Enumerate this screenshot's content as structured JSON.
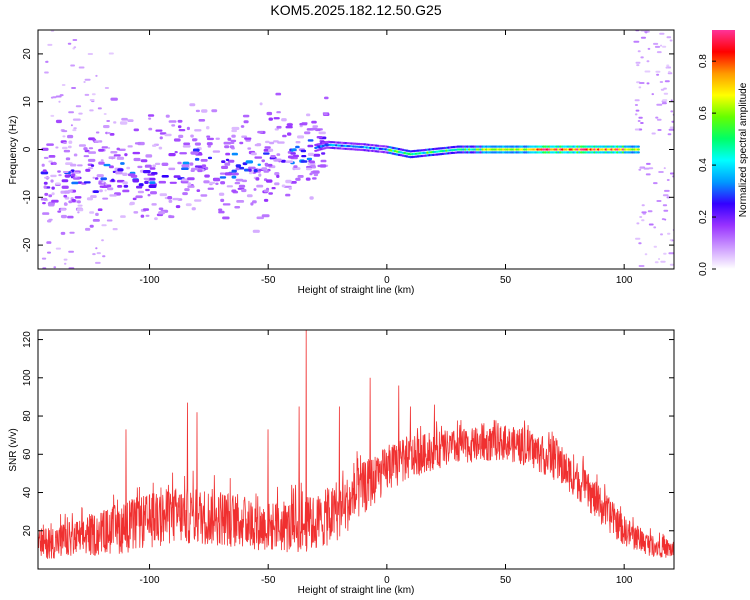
{
  "title": "KOM5.2025.182.12.50.G25",
  "chart_data": [
    {
      "type": "heatmap",
      "xlabel": "Height of straight line (km)",
      "ylabel": "Frequency (Hz)",
      "xlim": [
        -147,
        121
      ],
      "ylim": [
        -25,
        25
      ],
      "xticks": [
        -100,
        -50,
        0,
        50,
        100
      ],
      "yticks": [
        -20,
        -10,
        0,
        10,
        20
      ],
      "colorbar": {
        "label": "Normalized spectral amplitude",
        "range": [
          0,
          0.92
        ],
        "ticks": [
          "0.0",
          "0.2",
          "0.4",
          "0.6",
          "0.8"
        ],
        "tick_values": [
          0.0,
          0.2,
          0.4,
          0.6,
          0.8
        ],
        "colors": [
          "#ffffff",
          "#cc99ff",
          "#9933ff",
          "#3300ff",
          "#0099ff",
          "#00ffff",
          "#00ff66",
          "#66ff00",
          "#ffff00",
          "#ff9900",
          "#ff0000",
          "#ff3399"
        ]
      },
      "ridge": {
        "description_points": [
          [
            -120,
            -6
          ],
          [
            -100,
            -5
          ],
          [
            -80,
            -3
          ],
          [
            -60,
            -4
          ],
          [
            -40,
            -1
          ],
          [
            -25,
            1
          ],
          [
            -10,
            0.5
          ],
          [
            0,
            0
          ],
          [
            10,
            -1
          ],
          [
            30,
            0
          ],
          [
            60,
            0
          ],
          [
            90,
            0
          ],
          [
            105,
            0
          ]
        ],
        "peak_region": [
          40,
          100
        ],
        "peak_amplitude": 0.9
      }
    },
    {
      "type": "line",
      "xlabel": "Height of straight line (km)",
      "ylabel": "SNR (v/v)",
      "xlim": [
        -147,
        121
      ],
      "ylim": [
        0,
        125
      ],
      "xticks": [
        -100,
        -50,
        0,
        50,
        100
      ],
      "yticks": [
        20,
        40,
        60,
        80,
        100,
        120
      ],
      "color": "#f03030",
      "envelope": {
        "x": [
          -147,
          -130,
          -110,
          -90,
          -70,
          -50,
          -40,
          -30,
          -20,
          -10,
          0,
          10,
          20,
          30,
          40,
          50,
          60,
          70,
          80,
          90,
          100,
          110,
          121
        ],
        "mean": [
          13,
          16,
          22,
          28,
          27,
          22,
          22,
          24,
          30,
          42,
          52,
          58,
          62,
          64,
          65,
          66,
          63,
          57,
          47,
          33,
          20,
          13,
          10
        ],
        "spread": [
          8,
          10,
          14,
          15,
          15,
          13,
          14,
          15,
          15,
          14,
          12,
          11,
          10,
          9,
          9,
          9,
          10,
          10,
          10,
          10,
          8,
          6,
          5
        ]
      },
      "spikes": [
        [
          -110,
          73
        ],
        [
          -84,
          87
        ],
        [
          -80,
          82
        ],
        [
          -50,
          73
        ],
        [
          -37,
          85
        ],
        [
          -34,
          125
        ],
        [
          -20,
          85
        ],
        [
          -7,
          100
        ],
        [
          5,
          96
        ],
        [
          10,
          85
        ],
        [
          20,
          86
        ]
      ]
    }
  ]
}
